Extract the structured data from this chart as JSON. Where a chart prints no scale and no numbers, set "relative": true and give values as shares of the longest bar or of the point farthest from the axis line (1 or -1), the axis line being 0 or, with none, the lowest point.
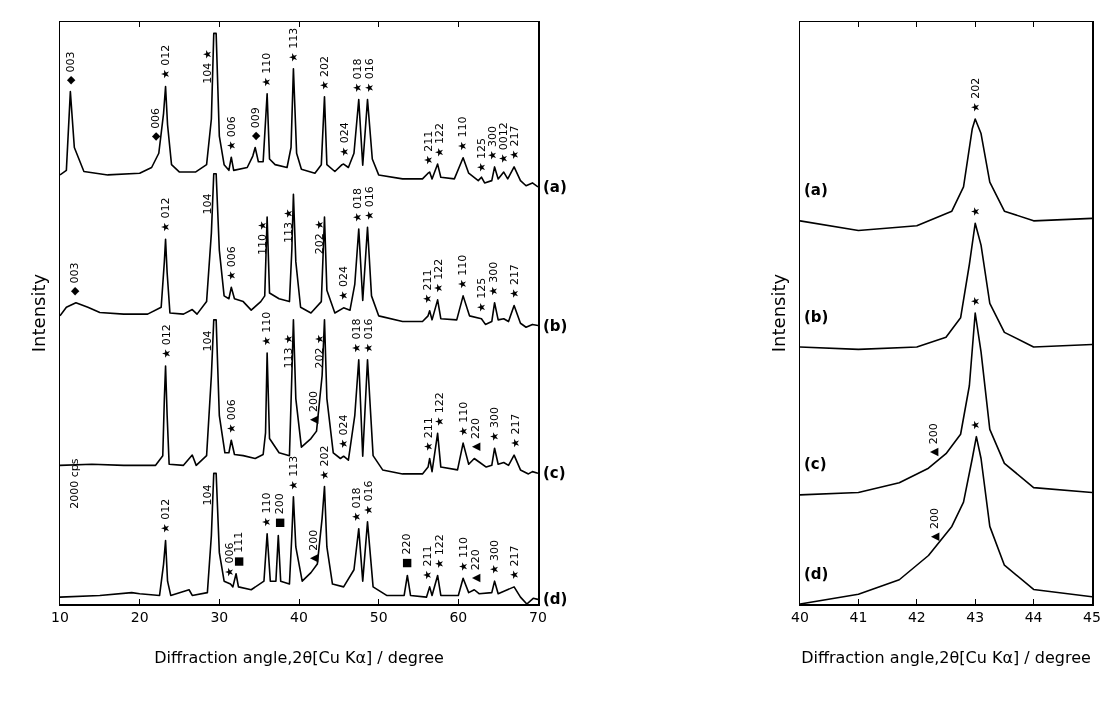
{
  "chart_data": [
    {
      "type": "line",
      "relative": true,
      "xlabel": "Diffraction angle,2θ[Cu Kα] / degree",
      "ylabel": "Intensity",
      "xlim": [
        10,
        70
      ],
      "xticks": [
        10,
        20,
        30,
        40,
        50,
        60,
        70
      ],
      "tick_labels": "x",
      "grid": false,
      "legend": false,
      "marker": "none",
      "line_style": "solid",
      "series": [
        {
          "name": "(a)",
          "color": "#000000",
          "x": [
            10,
            10.8,
            11.3,
            11.8,
            13,
            16,
            20,
            21.5,
            22.4,
            23.0,
            23.25,
            23.5,
            24.0,
            25,
            27,
            28.4,
            29.0,
            29.3,
            29.6,
            30.0,
            30.6,
            31.2,
            31.5,
            31.8,
            33.5,
            34.2,
            34.5,
            34.9,
            35.5,
            36.0,
            36.3,
            37,
            38.5,
            39.0,
            39.3,
            39.7,
            40.3,
            42.0,
            42.8,
            43.2,
            43.5,
            44.5,
            45.4,
            45.6,
            46.2,
            46.9,
            47.5,
            48.0,
            48.6,
            49.2,
            50,
            53,
            55.5,
            56.2,
            56.4,
            56.7,
            57.4,
            57.8,
            59.5,
            60.6,
            61.3,
            62.5,
            62.9,
            63.3,
            64.2,
            64.55,
            65.0,
            65.7,
            66.2,
            67.0,
            67.8,
            68.5,
            69.3,
            70
          ],
          "values": [
            0.752,
            0.76,
            0.898,
            0.8,
            0.758,
            0.752,
            0.755,
            0.765,
            0.79,
            0.86,
            0.907,
            0.84,
            0.77,
            0.757,
            0.757,
            0.77,
            0.85,
            1.0,
            1.0,
            0.82,
            0.77,
            0.76,
            0.783,
            0.76,
            0.765,
            0.785,
            0.8,
            0.775,
            0.775,
            0.894,
            0.78,
            0.77,
            0.765,
            0.8,
            0.938,
            0.79,
            0.762,
            0.755,
            0.77,
            0.889,
            0.77,
            0.758,
            0.77,
            0.771,
            0.765,
            0.79,
            0.884,
            0.769,
            0.884,
            0.78,
            0.752,
            0.745,
            0.745,
            0.755,
            0.757,
            0.745,
            0.771,
            0.748,
            0.745,
            0.782,
            0.755,
            0.742,
            0.748,
            0.738,
            0.742,
            0.766,
            0.745,
            0.757,
            0.745,
            0.766,
            0.742,
            0.733,
            0.738,
            0.731
          ]
        },
        {
          "name": "(b)",
          "color": "#000000",
          "x": [
            10,
            10.8,
            12,
            13.5,
            15,
            18,
            21,
            22.7,
            23.1,
            23.25,
            23.45,
            23.8,
            25.5,
            26.6,
            27.2,
            28.4,
            29.0,
            29.3,
            29.6,
            30.0,
            30.6,
            31.2,
            31.5,
            31.9,
            33,
            34,
            35.2,
            35.7,
            36.0,
            36.3,
            37.5,
            38.8,
            39.1,
            39.3,
            39.6,
            40.2,
            41.5,
            42.8,
            43.1,
            43.2,
            43.5,
            44.5,
            45.6,
            46.4,
            47.0,
            47.5,
            48.0,
            48.6,
            49.1,
            50,
            53,
            55.5,
            56.2,
            56.4,
            56.7,
            57.4,
            57.8,
            59.8,
            60.6,
            61.4,
            62.9,
            63.4,
            64.2,
            64.55,
            65.0,
            65.7,
            66.3,
            67.0,
            67.8,
            68.5,
            69.3,
            70
          ],
          "values": [
            0.505,
            0.52,
            0.528,
            0.52,
            0.511,
            0.508,
            0.508,
            0.52,
            0.6,
            0.639,
            0.58,
            0.51,
            0.508,
            0.516,
            0.508,
            0.53,
            0.65,
            0.754,
            0.754,
            0.62,
            0.54,
            0.535,
            0.555,
            0.535,
            0.53,
            0.515,
            0.53,
            0.54,
            0.678,
            0.545,
            0.535,
            0.53,
            0.62,
            0.718,
            0.6,
            0.52,
            0.51,
            0.53,
            0.64,
            0.678,
            0.55,
            0.51,
            0.519,
            0.515,
            0.56,
            0.657,
            0.532,
            0.66,
            0.54,
            0.505,
            0.495,
            0.495,
            0.505,
            0.514,
            0.498,
            0.533,
            0.5,
            0.498,
            0.54,
            0.505,
            0.5,
            0.49,
            0.495,
            0.528,
            0.498,
            0.5,
            0.495,
            0.523,
            0.492,
            0.485,
            0.49,
            0.488
          ]
        },
        {
          "name": "(c)",
          "color": "#000000",
          "x": [
            10,
            14,
            18,
            22,
            22.9,
            23.1,
            23.25,
            23.45,
            23.7,
            25.5,
            26.6,
            27.1,
            28.4,
            29.0,
            29.3,
            29.6,
            30.0,
            30.7,
            31.2,
            31.5,
            31.9,
            33,
            34.5,
            35.5,
            35.8,
            36.0,
            36.3,
            37.5,
            38.8,
            39.1,
            39.3,
            39.6,
            40.3,
            41.5,
            42.2,
            42.9,
            43.2,
            43.5,
            44.3,
            45.2,
            45.6,
            46.2,
            47.0,
            47.5,
            48.0,
            48.6,
            49.3,
            50.5,
            53,
            55.5,
            56.2,
            56.4,
            56.7,
            57.4,
            57.8,
            59.9,
            60.6,
            61.3,
            62.0,
            62.7,
            63.5,
            64.2,
            64.55,
            65.0,
            65.7,
            66.3,
            67.0,
            67.8,
            68.8,
            69.3,
            70
          ],
          "values": [
            0.243,
            0.245,
            0.243,
            0.243,
            0.26,
            0.36,
            0.417,
            0.33,
            0.245,
            0.243,
            0.261,
            0.243,
            0.26,
            0.4,
            0.498,
            0.498,
            0.33,
            0.265,
            0.265,
            0.287,
            0.262,
            0.26,
            0.255,
            0.262,
            0.3,
            0.44,
            0.29,
            0.265,
            0.26,
            0.4,
            0.498,
            0.36,
            0.275,
            0.29,
            0.303,
            0.4,
            0.498,
            0.36,
            0.265,
            0.255,
            0.259,
            0.252,
            0.33,
            0.428,
            0.259,
            0.428,
            0.26,
            0.235,
            0.228,
            0.228,
            0.24,
            0.255,
            0.232,
            0.299,
            0.24,
            0.235,
            0.282,
            0.245,
            0.255,
            0.248,
            0.24,
            0.243,
            0.273,
            0.245,
            0.248,
            0.243,
            0.261,
            0.235,
            0.228,
            0.232,
            0.229
          ]
        },
        {
          "name": "(d)",
          "color": "#000000",
          "x": [
            10,
            15,
            19,
            20,
            22.5,
            23.0,
            23.25,
            23.5,
            23.9,
            26.2,
            26.6,
            28.5,
            29.0,
            29.3,
            29.6,
            30.0,
            30.6,
            31.4,
            31.7,
            32.1,
            32.4,
            34,
            35.6,
            36.0,
            36.4,
            37.1,
            37.4,
            37.7,
            38.8,
            39.1,
            39.3,
            39.6,
            40.4,
            41.5,
            42.3,
            42.9,
            43.2,
            43.5,
            44.2,
            45.6,
            46.9,
            47.5,
            48.0,
            48.6,
            49.3,
            51,
            53.2,
            53.6,
            54.0,
            56.0,
            56.4,
            56.7,
            57.4,
            57.8,
            60.0,
            60.6,
            61.3,
            62.0,
            62.6,
            64.2,
            64.55,
            65.0,
            67.0,
            67.8,
            68.6,
            69.4,
            70
          ],
          "values": [
            0.012,
            0.015,
            0.02,
            0.018,
            0.015,
            0.07,
            0.111,
            0.04,
            0.015,
            0.025,
            0.015,
            0.02,
            0.12,
            0.229,
            0.229,
            0.09,
            0.04,
            0.035,
            0.03,
            0.053,
            0.03,
            0.025,
            0.04,
            0.123,
            0.04,
            0.04,
            0.12,
            0.04,
            0.035,
            0.12,
            0.188,
            0.1,
            0.04,
            0.055,
            0.07,
            0.15,
            0.206,
            0.1,
            0.035,
            0.03,
            0.06,
            0.132,
            0.04,
            0.144,
            0.03,
            0.015,
            0.015,
            0.05,
            0.015,
            0.012,
            0.03,
            0.015,
            0.05,
            0.015,
            0.015,
            0.045,
            0.02,
            0.025,
            0.018,
            0.02,
            0.04,
            0.018,
            0.03,
            0.012,
            0.0,
            0.01,
            0.008
          ]
        }
      ],
      "annotations": [
        {
          "text": "◆ 003",
          "x": 11.3,
          "y": 0.898
        },
        {
          "text": "◆ 006",
          "x": 21.9,
          "y": 0.8
        },
        {
          "text": "★ 012",
          "x": 23.25,
          "y": 0.907
        },
        {
          "text": "104 ★",
          "x": 28.5,
          "y": 0.9
        },
        {
          "text": "★ 006",
          "x": 31.5,
          "y": 0.783
        },
        {
          "text": "◆ 009",
          "x": 34.5,
          "y": 0.8
        },
        {
          "text": "★ 110",
          "x": 36.0,
          "y": 0.894
        },
        {
          "text": "★ 113",
          "x": 39.3,
          "y": 0.938
        },
        {
          "text": "★ 202",
          "x": 43.2,
          "y": 0.889
        },
        {
          "text": "★ 024",
          "x": 45.6,
          "y": 0.771
        },
        {
          "text": "★ 018",
          "x": 47.3,
          "y": 0.884
        },
        {
          "text": "★ 016",
          "x": 48.8,
          "y": 0.884
        },
        {
          "text": "★ 211",
          "x": 56.2,
          "y": 0.757
        },
        {
          "text": "★ 122",
          "x": 57.6,
          "y": 0.771
        },
        {
          "text": "★ 110",
          "x": 60.6,
          "y": 0.782
        },
        {
          "text": "★ 125",
          "x": 62.9,
          "y": 0.745
        },
        {
          "text": "★ 300",
          "x": 64.4,
          "y": 0.766
        },
        {
          "text": "★ 0012",
          "x": 65.7,
          "y": 0.76
        },
        {
          "text": "★ 217",
          "x": 67.1,
          "y": 0.766
        },
        {
          "text": "◆ 003",
          "x": 11.8,
          "y": 0.528
        },
        {
          "text": "★ 012",
          "x": 23.25,
          "y": 0.639
        },
        {
          "text": "104",
          "x": 28.5,
          "y": 0.67
        },
        {
          "text": "★ 006",
          "x": 31.5,
          "y": 0.555
        },
        {
          "text": "110 ★",
          "x": 35.4,
          "y": 0.6
        },
        {
          "text": "113 ★",
          "x": 38.7,
          "y": 0.62
        },
        {
          "text": "202 ★",
          "x": 42.6,
          "y": 0.6
        },
        {
          "text": "★ 024",
          "x": 45.6,
          "y": 0.519
        },
        {
          "text": "★ 018",
          "x": 47.3,
          "y": 0.657
        },
        {
          "text": "★ 016",
          "x": 48.8,
          "y": 0.66
        },
        {
          "text": "★ 211",
          "x": 56.2,
          "y": 0.514
        },
        {
          "text": "★ 122",
          "x": 57.6,
          "y": 0.533
        },
        {
          "text": "★ 110",
          "x": 60.6,
          "y": 0.54
        },
        {
          "text": "★ 125",
          "x": 62.9,
          "y": 0.5
        },
        {
          "text": "★ 300",
          "x": 64.4,
          "y": 0.528
        },
        {
          "text": "★ 217",
          "x": 67.1,
          "y": 0.523
        },
        {
          "text": "★ 012",
          "x": 23.25,
          "y": 0.417
        },
        {
          "text": "104",
          "x": 28.5,
          "y": 0.43
        },
        {
          "text": "★ 006",
          "x": 31.5,
          "y": 0.287
        },
        {
          "text": "★ 110",
          "x": 36.0,
          "y": 0.44
        },
        {
          "text": "113 ★",
          "x": 38.7,
          "y": 0.4
        },
        {
          "text": "▲ 200",
          "x": 41.8,
          "y": 0.303
        },
        {
          "text": "202 ★",
          "x": 42.6,
          "y": 0.4
        },
        {
          "text": "★ 024",
          "x": 45.6,
          "y": 0.259
        },
        {
          "text": "★ 018",
          "x": 47.3,
          "y": 0.428
        },
        {
          "text": "★ 016",
          "x": 48.8,
          "y": 0.428
        },
        {
          "text": "★ 211",
          "x": 56.2,
          "y": 0.255
        },
        {
          "text": "★ 122",
          "x": 57.6,
          "y": 0.299
        },
        {
          "text": "★ 110",
          "x": 60.6,
          "y": 0.282
        },
        {
          "text": "▲ 220",
          "x": 62.1,
          "y": 0.255
        },
        {
          "text": "★ 300",
          "x": 64.5,
          "y": 0.273
        },
        {
          "text": "★ 217",
          "x": 67.1,
          "y": 0.261
        },
        {
          "text": "★ 012",
          "x": 23.25,
          "y": 0.111
        },
        {
          "text": "104",
          "x": 28.5,
          "y": 0.16
        },
        {
          "text": "★ 006",
          "x": 31.2,
          "y": 0.035
        },
        {
          "text": "■ 111",
          "x": 32.4,
          "y": 0.053
        },
        {
          "text": "★ 110",
          "x": 36.0,
          "y": 0.123
        },
        {
          "text": "■ 200",
          "x": 37.5,
          "y": 0.12
        },
        {
          "text": "★ 113",
          "x": 39.3,
          "y": 0.188
        },
        {
          "text": "▲ 200",
          "x": 41.8,
          "y": 0.06
        },
        {
          "text": "★ 202",
          "x": 43.2,
          "y": 0.206
        },
        {
          "text": "★ 018",
          "x": 47.3,
          "y": 0.132
        },
        {
          "text": "★ 016",
          "x": 48.8,
          "y": 0.144
        },
        {
          "text": "■ 220",
          "x": 53.6,
          "y": 0.05
        },
        {
          "text": "★ 211",
          "x": 56.2,
          "y": 0.03
        },
        {
          "text": "★ 122",
          "x": 57.6,
          "y": 0.05
        },
        {
          "text": "★ 110",
          "x": 60.6,
          "y": 0.045
        },
        {
          "text": "▲ 220",
          "x": 62.1,
          "y": 0.025
        },
        {
          "text": "★ 300",
          "x": 64.5,
          "y": 0.04
        },
        {
          "text": "★ 217",
          "x": 67.1,
          "y": 0.03
        },
        "2000 cps"
      ]
    },
    {
      "type": "line",
      "relative": true,
      "xlabel": "Diffraction angle,2θ[Cu Kα] / degree",
      "ylabel": "Intensity",
      "xlim": [
        40,
        45
      ],
      "xticks": [
        40,
        41,
        42,
        43,
        44,
        45
      ],
      "tick_labels": "x",
      "grid": false,
      "legend": false,
      "marker": "none",
      "line_style": "solid",
      "series": [
        {
          "name": "(a)",
          "color": "#000000",
          "x": [
            40,
            41,
            42,
            42.6,
            42.8,
            42.95,
            43.0,
            43.1,
            43.25,
            43.5,
            44,
            45
          ],
          "values": [
            0.79,
            0.77,
            0.78,
            0.81,
            0.86,
            0.98,
            1.0,
            0.97,
            0.87,
            0.81,
            0.79,
            0.795
          ]
        },
        {
          "name": "(b)",
          "color": "#000000",
          "x": [
            40,
            41,
            42,
            42.5,
            42.75,
            42.9,
            43.0,
            43.1,
            43.25,
            43.5,
            44,
            45
          ],
          "values": [
            0.53,
            0.525,
            0.53,
            0.55,
            0.59,
            0.7,
            0.785,
            0.74,
            0.62,
            0.56,
            0.53,
            0.535
          ]
        },
        {
          "name": "(c)",
          "color": "#000000",
          "x": [
            40,
            41,
            41.7,
            42.2,
            42.5,
            42.75,
            42.9,
            43.0,
            43.1,
            43.25,
            43.5,
            44,
            45
          ],
          "values": [
            0.225,
            0.23,
            0.25,
            0.28,
            0.31,
            0.35,
            0.45,
            0.6,
            0.52,
            0.36,
            0.29,
            0.24,
            0.23
          ]
        },
        {
          "name": "(d)",
          "color": "#000000",
          "x": [
            40,
            41,
            41.7,
            42.2,
            42.6,
            42.8,
            42.95,
            43.02,
            43.1,
            43.25,
            43.5,
            44,
            45
          ],
          "values": [
            0.0,
            0.02,
            0.05,
            0.1,
            0.16,
            0.21,
            0.3,
            0.345,
            0.3,
            0.16,
            0.08,
            0.03,
            0.015
          ]
        }
      ],
      "annotations": [
        {
          "text": "★ 202",
          "x": 43.0,
          "y": 1.0
        },
        {
          "text": "★",
          "x": 43.0,
          "y": 0.785
        },
        {
          "text": "★",
          "x": 43.0,
          "y": 0.6
        },
        {
          "text": "▲ 200",
          "x": 42.3,
          "y": 0.29
        },
        {
          "text": "★",
          "x": 43.0,
          "y": 0.345
        },
        {
          "text": "▲ 200",
          "x": 42.3,
          "y": 0.115
        }
      ]
    }
  ]
}
